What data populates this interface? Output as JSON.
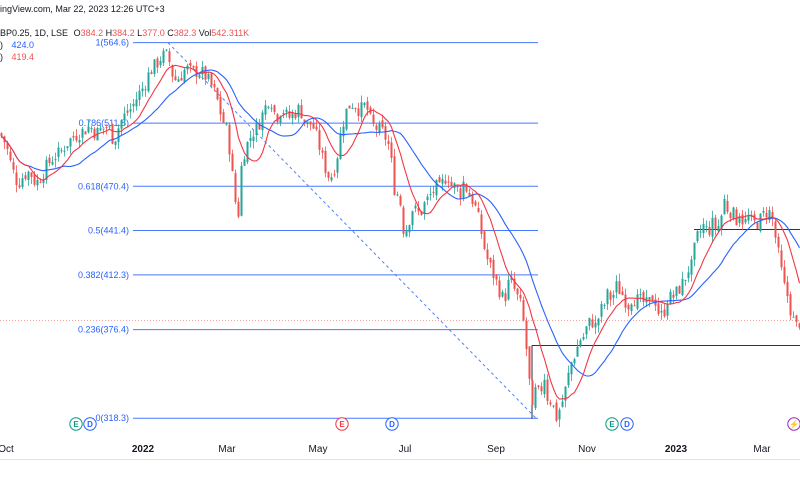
{
  "header": {
    "source": "ingView.com, Mar 22, 2023 12:26 UTC+3",
    "line2_prefix": "BP0.25, 1D, LSE",
    "open_label": "O",
    "open_value": "384.2",
    "high_label": "H",
    "high_value": "384.2",
    "low_label": "L",
    "low_value": "377.0",
    "close_label": "C",
    "close_value": "382.3",
    "vol_label": "Vol",
    "vol_value": "542.311K",
    "ma_slow_prefix": ")",
    "ma_slow_value": "424.0",
    "ma_fast_prefix": ")",
    "ma_fast_value": "419.4"
  },
  "colors": {
    "up": "#26a69a",
    "down": "#ef5350",
    "ma_slow": "#2962ff",
    "ma_fast": "#f23645",
    "fib": "#2962ff",
    "fib_label": "#2962ff",
    "axis_text": "#131722",
    "event_green": "#089981",
    "event_blue": "#2962ff",
    "event_red": "#f23645",
    "event_purple": "#9c27b0"
  },
  "chart_data": {
    "type": "candlestick",
    "title": "",
    "ylim": [
      304,
      586
    ],
    "x_tick_labels": [
      "Oct",
      "2022",
      "Mar",
      "May",
      "Jul",
      "Sep",
      "Nov",
      "2023",
      "Mar"
    ],
    "fib_levels": [
      {
        "ratio": "1",
        "price": 564.6,
        "label": "1(564.6)"
      },
      {
        "ratio": "0.786",
        "price": 511.8,
        "label": "0.786(511.8)"
      },
      {
        "ratio": "0.618",
        "price": 470.4,
        "label": "0.618(470.4)"
      },
      {
        "ratio": "0.5",
        "price": 441.4,
        "label": "0.5(441.4)"
      },
      {
        "ratio": "0.382",
        "price": 412.3,
        "label": "0.382(412.3)"
      },
      {
        "ratio": "0.236",
        "price": 376.4,
        "label": "0.236(376.4)"
      },
      {
        "ratio": "0",
        "price": 318.3,
        "label": "0(318.3)"
      }
    ],
    "close_series": [
      [
        0,
        505
      ],
      [
        6,
        498
      ],
      [
        12,
        482
      ],
      [
        18,
        472
      ],
      [
        24,
        478
      ],
      [
        30,
        480
      ],
      [
        36,
        472
      ],
      [
        42,
        478
      ],
      [
        48,
        485
      ],
      [
        54,
        490
      ],
      [
        60,
        492
      ],
      [
        66,
        498
      ],
      [
        72,
        502
      ],
      [
        78,
        505
      ],
      [
        84,
        507
      ],
      [
        90,
        510
      ],
      [
        96,
        505
      ],
      [
        102,
        508
      ],
      [
        108,
        510
      ],
      [
        114,
        500
      ],
      [
        120,
        512
      ],
      [
        126,
        518
      ],
      [
        132,
        522
      ],
      [
        138,
        530
      ],
      [
        144,
        536
      ],
      [
        150,
        546
      ],
      [
        156,
        550
      ],
      [
        162,
        556
      ],
      [
        168,
        556
      ],
      [
        174,
        540
      ],
      [
        180,
        542
      ],
      [
        186,
        548
      ],
      [
        192,
        545
      ],
      [
        198,
        546
      ],
      [
        204,
        544
      ],
      [
        210,
        538
      ],
      [
        216,
        530
      ],
      [
        222,
        515
      ],
      [
        228,
        505
      ],
      [
        234,
        468
      ],
      [
        238,
        448
      ],
      [
        242,
        488
      ],
      [
        246,
        496
      ],
      [
        252,
        505
      ],
      [
        258,
        510
      ],
      [
        264,
        520
      ],
      [
        270,
        530
      ],
      [
        276,
        515
      ],
      [
        282,
        522
      ],
      [
        288,
        515
      ],
      [
        294,
        518
      ],
      [
        300,
        522
      ],
      [
        306,
        510
      ],
      [
        312,
        512
      ],
      [
        318,
        500
      ],
      [
        324,
        485
      ],
      [
        330,
        475
      ],
      [
        336,
        485
      ],
      [
        342,
        510
      ],
      [
        348,
        523
      ],
      [
        354,
        525
      ],
      [
        360,
        520
      ],
      [
        366,
        524
      ],
      [
        372,
        510
      ],
      [
        378,
        508
      ],
      [
        384,
        505
      ],
      [
        390,
        495
      ],
      [
        394,
        470
      ],
      [
        400,
        462
      ],
      [
        404,
        440
      ],
      [
        408,
        445
      ],
      [
        412,
        456
      ],
      [
        416,
        454
      ],
      [
        420,
        452
      ],
      [
        424,
        458
      ],
      [
        428,
        462
      ],
      [
        432,
        466
      ],
      [
        436,
        470
      ],
      [
        440,
        468
      ],
      [
        444,
        475
      ],
      [
        448,
        478
      ],
      [
        452,
        470
      ],
      [
        456,
        470
      ],
      [
        460,
        465
      ],
      [
        464,
        474
      ],
      [
        468,
        466
      ],
      [
        474,
        460
      ],
      [
        480,
        445
      ],
      [
        486,
        425
      ],
      [
        492,
        415
      ],
      [
        498,
        405
      ],
      [
        504,
        395
      ],
      [
        510,
        410
      ],
      [
        516,
        400
      ],
      [
        522,
        390
      ],
      [
        528,
        355
      ],
      [
        532,
        320
      ],
      [
        536,
        338
      ],
      [
        540,
        332
      ],
      [
        544,
        348
      ],
      [
        548,
        330
      ],
      [
        552,
        330
      ],
      [
        556,
        318
      ],
      [
        560,
        325
      ],
      [
        564,
        332
      ],
      [
        568,
        345
      ],
      [
        572,
        356
      ],
      [
        576,
        362
      ],
      [
        580,
        370
      ],
      [
        584,
        372
      ],
      [
        588,
        380
      ],
      [
        592,
        382
      ],
      [
        596,
        378
      ],
      [
        600,
        388
      ],
      [
        604,
        392
      ],
      [
        608,
        400
      ],
      [
        612,
        396
      ],
      [
        616,
        405
      ],
      [
        620,
        402
      ],
      [
        624,
        398
      ],
      [
        628,
        392
      ],
      [
        632,
        398
      ],
      [
        636,
        396
      ],
      [
        640,
        395
      ],
      [
        644,
        394
      ],
      [
        648,
        392
      ],
      [
        652,
        398
      ],
      [
        656,
        395
      ],
      [
        660,
        384
      ],
      [
        664,
        388
      ],
      [
        668,
        398
      ],
      [
        672,
        397
      ],
      [
        676,
        400
      ],
      [
        680,
        404
      ],
      [
        684,
        408
      ],
      [
        688,
        416
      ],
      [
        692,
        418
      ],
      [
        696,
        435
      ],
      [
        700,
        440
      ],
      [
        704,
        445
      ],
      [
        708,
        440
      ],
      [
        712,
        446
      ],
      [
        716,
        443
      ],
      [
        720,
        445
      ],
      [
        724,
        462
      ],
      [
        728,
        455
      ],
      [
        732,
        454
      ],
      [
        736,
        448
      ],
      [
        740,
        454
      ],
      [
        744,
        445
      ],
      [
        748,
        450
      ],
      [
        752,
        446
      ],
      [
        756,
        446
      ],
      [
        760,
        448
      ],
      [
        764,
        452
      ],
      [
        768,
        455
      ],
      [
        772,
        450
      ],
      [
        776,
        435
      ],
      [
        780,
        420
      ],
      [
        784,
        405
      ],
      [
        788,
        398
      ],
      [
        792,
        385
      ],
      [
        796,
        378
      ],
      [
        800,
        382
      ]
    ],
    "series": [
      {
        "name": "",
        "key": "ma_slow"
      },
      {
        "name": "",
        "key": "ma_fast"
      }
    ]
  },
  "events": [
    {
      "letter": "E",
      "kind": "earnings",
      "color_key": "event_green"
    },
    {
      "letter": "D",
      "kind": "dividend",
      "color_key": "event_blue"
    },
    {
      "letter": "E",
      "kind": "earnings",
      "color_key": "event_red"
    },
    {
      "letter": "D",
      "kind": "dividend",
      "color_key": "event_blue"
    },
    {
      "letter": "E",
      "kind": "earnings",
      "color_key": "event_green"
    },
    {
      "letter": "D",
      "kind": "dividend",
      "color_key": "event_blue"
    },
    {
      "letter": "⚡",
      "kind": "split",
      "color_key": "event_purple"
    }
  ]
}
